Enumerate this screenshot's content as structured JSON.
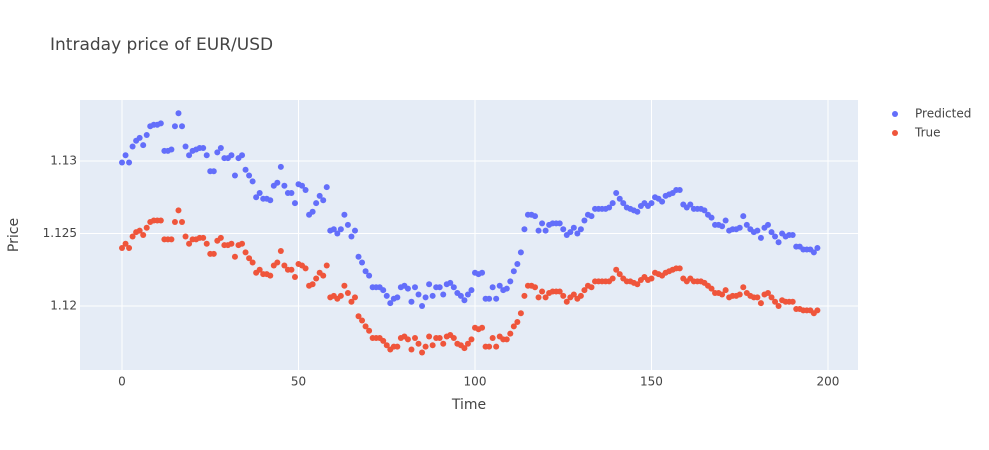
{
  "chart_data": {
    "type": "scatter",
    "title": "Intraday price of EUR/USD",
    "x_label": "Time",
    "y_label": "Price",
    "x": [
      0,
      1,
      2,
      3,
      4,
      5,
      6,
      7,
      8,
      9,
      10,
      11,
      12,
      13,
      14,
      15,
      16,
      17,
      18,
      19,
      20,
      21,
      22,
      23,
      24,
      25,
      26,
      27,
      28,
      29,
      30,
      31,
      32,
      33,
      34,
      35,
      36,
      37,
      38,
      39,
      40,
      41,
      42,
      43,
      44,
      45,
      46,
      47,
      48,
      49,
      50,
      51,
      52,
      53,
      54,
      55,
      56,
      57,
      58,
      59,
      60,
      61,
      62,
      63,
      64,
      65,
      66,
      67,
      68,
      69,
      70,
      71,
      72,
      73,
      74,
      75,
      76,
      77,
      78,
      79,
      80,
      81,
      82,
      83,
      84,
      85,
      86,
      87,
      88,
      89,
      90,
      91,
      92,
      93,
      94,
      95,
      96,
      97,
      98,
      99,
      100,
      101,
      102,
      103,
      104,
      105,
      106,
      107,
      108,
      109,
      110,
      111,
      112,
      113,
      114,
      115,
      116,
      117,
      118,
      119,
      120,
      121,
      122,
      123,
      124,
      125,
      126,
      127,
      128,
      129,
      130,
      131,
      132,
      133,
      134,
      135,
      136,
      137,
      138,
      139,
      140,
      141,
      142,
      143,
      144,
      145,
      146,
      147,
      148,
      149,
      150,
      151,
      152,
      153,
      154,
      155,
      156,
      157,
      158,
      159,
      160,
      161,
      162,
      163,
      164,
      165,
      166,
      167,
      168,
      169,
      170,
      171,
      172,
      173,
      174,
      175,
      176,
      177,
      178,
      179,
      180,
      181,
      182,
      183,
      184,
      185,
      186,
      187,
      188,
      189,
      190,
      191,
      192,
      193,
      194,
      195,
      196,
      197
    ],
    "series": [
      {
        "name": "Predicted",
        "color": "#636efa",
        "values": [
          1.1299,
          1.1304,
          1.1299,
          1.131,
          1.1314,
          1.1316,
          1.1311,
          1.1318,
          1.1324,
          1.1325,
          1.1325,
          1.1326,
          1.1307,
          1.1307,
          1.1308,
          1.1324,
          1.1333,
          1.1324,
          1.131,
          1.1304,
          1.1307,
          1.1308,
          1.1309,
          1.1309,
          1.1304,
          1.1293,
          1.1293,
          1.1306,
          1.1309,
          1.1302,
          1.1302,
          1.1304,
          1.129,
          1.1302,
          1.1304,
          1.1294,
          1.129,
          1.1286,
          1.1275,
          1.1278,
          1.1274,
          1.1274,
          1.1273,
          1.1283,
          1.1285,
          1.1296,
          1.1283,
          1.1278,
          1.1278,
          1.1271,
          1.1284,
          1.1283,
          1.128,
          1.1263,
          1.1265,
          1.1271,
          1.1276,
          1.1273,
          1.1282,
          1.1252,
          1.1253,
          1.125,
          1.1253,
          1.1263,
          1.1256,
          1.1248,
          1.1252,
          1.1234,
          1.123,
          1.1224,
          1.1221,
          1.1213,
          1.1213,
          1.1213,
          1.1211,
          1.1207,
          1.1202,
          1.1205,
          1.1206,
          1.1213,
          1.1214,
          1.1212,
          1.1203,
          1.1213,
          1.1208,
          1.12,
          1.1206,
          1.1215,
          1.1207,
          1.1213,
          1.1213,
          1.1208,
          1.1215,
          1.1216,
          1.1213,
          1.1209,
          1.1207,
          1.1204,
          1.1208,
          1.1211,
          1.1223,
          1.1222,
          1.1223,
          1.1205,
          1.1205,
          1.1213,
          1.1205,
          1.1214,
          1.1211,
          1.1212,
          1.1217,
          1.1224,
          1.1229,
          1.1237,
          1.1253,
          1.1263,
          1.1263,
          1.1262,
          1.1252,
          1.1257,
          1.1252,
          1.1256,
          1.1257,
          1.1257,
          1.1257,
          1.1253,
          1.1249,
          1.1251,
          1.1254,
          1.125,
          1.1253,
          1.1259,
          1.1263,
          1.1262,
          1.1267,
          1.1267,
          1.1267,
          1.1267,
          1.1268,
          1.1271,
          1.1278,
          1.1274,
          1.1271,
          1.1268,
          1.1267,
          1.1266,
          1.1265,
          1.1269,
          1.1271,
          1.1269,
          1.1271,
          1.1275,
          1.1274,
          1.1272,
          1.1276,
          1.1277,
          1.1278,
          1.128,
          1.128,
          1.127,
          1.1268,
          1.127,
          1.1267,
          1.1267,
          1.1267,
          1.1266,
          1.1263,
          1.1261,
          1.1256,
          1.1256,
          1.1255,
          1.1259,
          1.1252,
          1.1253,
          1.1253,
          1.1254,
          1.1262,
          1.1256,
          1.1253,
          1.1251,
          1.1252,
          1.1247,
          1.1254,
          1.1256,
          1.1251,
          1.1248,
          1.1244,
          1.125,
          1.1248,
          1.1249,
          1.1249,
          1.1241,
          1.1241,
          1.1239,
          1.1239,
          1.1239,
          1.1237,
          1.124
        ]
      },
      {
        "name": "True",
        "color": "#ef553b",
        "values": [
          1.124,
          1.1243,
          1.124,
          1.1248,
          1.1251,
          1.1252,
          1.1249,
          1.1254,
          1.1258,
          1.1259,
          1.1259,
          1.1259,
          1.1246,
          1.1246,
          1.1246,
          1.1258,
          1.1266,
          1.1258,
          1.1248,
          1.1243,
          1.1246,
          1.1246,
          1.1247,
          1.1247,
          1.1243,
          1.1236,
          1.1236,
          1.1245,
          1.1247,
          1.1242,
          1.1242,
          1.1243,
          1.1234,
          1.1242,
          1.1243,
          1.1237,
          1.1233,
          1.123,
          1.1223,
          1.1225,
          1.1222,
          1.1222,
          1.1221,
          1.1228,
          1.123,
          1.1238,
          1.1228,
          1.1225,
          1.1225,
          1.122,
          1.1229,
          1.1228,
          1.1226,
          1.1214,
          1.1215,
          1.1219,
          1.1223,
          1.1221,
          1.1228,
          1.1206,
          1.1207,
          1.1205,
          1.1207,
          1.1214,
          1.1209,
          1.1203,
          1.1206,
          1.1193,
          1.119,
          1.1186,
          1.1183,
          1.1178,
          1.1178,
          1.1178,
          1.1176,
          1.1173,
          1.117,
          1.1172,
          1.1172,
          1.1178,
          1.1179,
          1.1177,
          1.117,
          1.1178,
          1.1174,
          1.1168,
          1.1172,
          1.1179,
          1.1173,
          1.1178,
          1.1178,
          1.1174,
          1.1179,
          1.118,
          1.1178,
          1.1174,
          1.1173,
          1.1171,
          1.1174,
          1.1177,
          1.1185,
          1.1184,
          1.1185,
          1.1172,
          1.1172,
          1.1178,
          1.1172,
          1.1179,
          1.1177,
          1.1177,
          1.1181,
          1.1186,
          1.1189,
          1.1195,
          1.1207,
          1.1214,
          1.1214,
          1.1213,
          1.1206,
          1.121,
          1.1206,
          1.1209,
          1.121,
          1.121,
          1.121,
          1.1207,
          1.1203,
          1.1206,
          1.1208,
          1.1205,
          1.1207,
          1.1211,
          1.1214,
          1.1213,
          1.1217,
          1.1217,
          1.1217,
          1.1217,
          1.1217,
          1.1219,
          1.1225,
          1.1222,
          1.1219,
          1.1217,
          1.1217,
          1.1216,
          1.1215,
          1.1218,
          1.122,
          1.1218,
          1.1219,
          1.1223,
          1.1222,
          1.1221,
          1.1223,
          1.1224,
          1.1225,
          1.1226,
          1.1226,
          1.1219,
          1.1217,
          1.1219,
          1.1217,
          1.1217,
          1.1217,
          1.1216,
          1.1214,
          1.1212,
          1.1209,
          1.1209,
          1.1208,
          1.1211,
          1.1206,
          1.1207,
          1.1207,
          1.1208,
          1.1213,
          1.1209,
          1.1207,
          1.1206,
          1.1206,
          1.1202,
          1.1208,
          1.1209,
          1.1206,
          1.1203,
          1.12,
          1.1204,
          1.1203,
          1.1203,
          1.1203,
          1.1198,
          1.1198,
          1.1197,
          1.1197,
          1.1197,
          1.1195,
          1.1197
        ]
      }
    ],
    "xlim": [
      -11.9,
      208.5
    ],
    "xticks": [
      0,
      50,
      100,
      150,
      200
    ],
    "ylim": [
      1.11559,
      1.13421
    ],
    "yticks": [
      1.12,
      1.125,
      1.13
    ],
    "grid": true,
    "legend": "right",
    "background": "#e5ecf6"
  }
}
